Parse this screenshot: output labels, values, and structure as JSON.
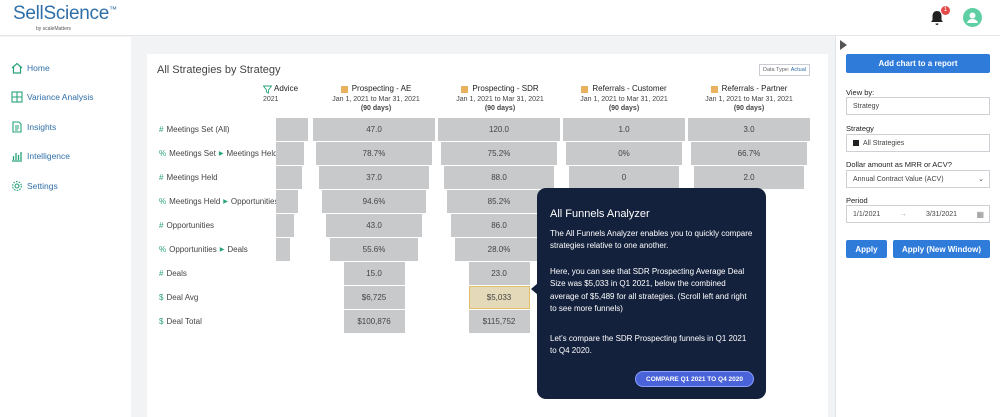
{
  "app": {
    "logo": "SellScience",
    "logo_tm": "™",
    "logo_sub": "by scaleMatters",
    "bell_badge": "1"
  },
  "nav": [
    {
      "label": "Home",
      "icon": "home-icon"
    },
    {
      "label": "Variance Analysis",
      "icon": "grid-icon"
    },
    {
      "label": "Insights",
      "icon": "document-icon"
    },
    {
      "label": "Intelligence",
      "icon": "bar-chart-icon"
    },
    {
      "label": "Settings",
      "icon": "gear-icon"
    }
  ],
  "chart": {
    "title": "All Strategies by Strategy",
    "data_type_label": "Data Type:",
    "data_type_value": "Actual",
    "advice": {
      "name": "Advice",
      "year": "2021"
    },
    "columns": [
      {
        "name": "Prospecting - AE",
        "range": "Jan 1, 2021 to Mar 31, 2021",
        "days": "(90 days)",
        "values": [
          "47.0",
          "78.7%",
          "37.0",
          "94.6%",
          "43.0",
          "55.6%",
          "15.0",
          "$6,725",
          "$100,876"
        ]
      },
      {
        "name": "Prospecting - SDR",
        "range": "Jan 1, 2021 to Mar 31, 2021",
        "days": "(90 days)",
        "values": [
          "120.0",
          "75.2%",
          "88.0",
          "85.2%",
          "86.0",
          "28.0%",
          "23.0",
          "$5,033",
          "$115,752"
        ]
      },
      {
        "name": "Referrals - Customer",
        "range": "Jan 1, 2021 to Mar 31, 2021",
        "days": "(90 days)",
        "values": [
          "1.0",
          "0%",
          "0",
          "",
          "",
          "",
          "",
          "",
          ""
        ]
      },
      {
        "name": "Referrals - Partner",
        "range": "Jan 1, 2021 to Mar 31, 2021",
        "days": "(90 days)",
        "values": [
          "3.0",
          "66.7%",
          "2.0",
          "",
          "",
          "",
          "",
          "",
          ""
        ]
      }
    ],
    "rows": [
      {
        "glyph": "#",
        "label": "Meetings Set (All)"
      },
      {
        "glyph": "%",
        "label": "Meetings Set",
        "to": "Meetings Held"
      },
      {
        "glyph": "#",
        "label": "Meetings Held"
      },
      {
        "glyph": "%",
        "label": "Meetings Held",
        "to": "Opportunities"
      },
      {
        "glyph": "#",
        "label": "Opportunities"
      },
      {
        "glyph": "%",
        "label": "Opportunities",
        "to": "Deals"
      },
      {
        "glyph": "#",
        "label": "Deals"
      },
      {
        "glyph": "$",
        "label": "Deal Avg"
      },
      {
        "glyph": "$",
        "label": "Deal Total"
      }
    ]
  },
  "panel": {
    "add_chart": "Add chart to a report",
    "view_by_label": "View by:",
    "view_by_value": "Strategy",
    "strategy_label": "Strategy",
    "strategy_value": "All Strategies",
    "dollar_label": "Dollar amount as MRR or ACV?",
    "dollar_value": "Annual Contract Value (ACV)",
    "period_label": "Period",
    "period_start": "1/1/2021",
    "period_end": "3/31/2021",
    "apply": "Apply",
    "apply_new": "Apply (New Window)"
  },
  "popup": {
    "title": "All Funnels Analyzer",
    "p1": "The All Funnels Analyzer enables you to quickly compare strategies relative to one another.",
    "p2": "Here, you can see that SDR Prospecting Average Deal Size was $5,033 in Q1 2021, below the combined average of $5,489 for all strategies. (Scroll left and right to see more funnels)",
    "p3": "Let's compare the SDR Prospecting funnels in Q1 2021 to Q4 2020.",
    "cta": "COMPARE Q1 2021 TO Q4 2020"
  },
  "colors": {
    "accent": "#2f7bd9",
    "brand": "#2f6fa8",
    "popup_bg": "#14213d",
    "strategy_marker": "#e8b25e",
    "funnel_cell": "#c8c9cb"
  }
}
